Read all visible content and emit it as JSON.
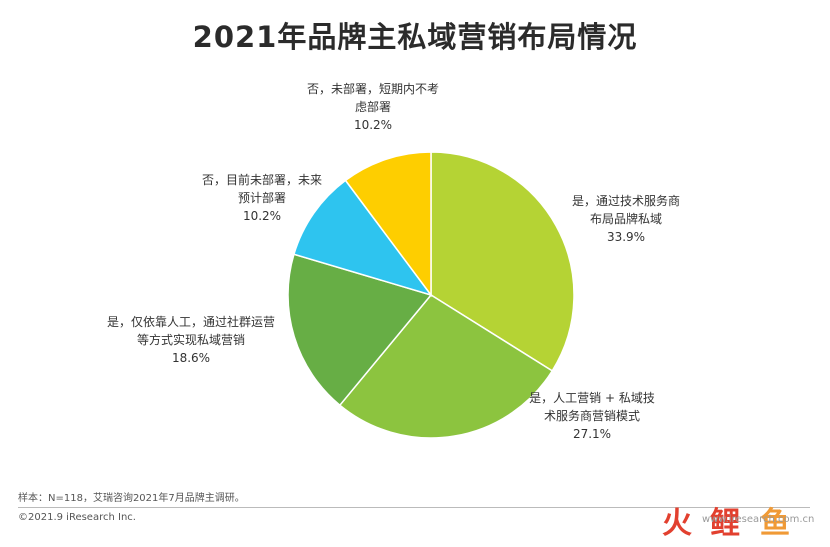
{
  "title": "2021年品牌主私域营销布局情况",
  "chart_data": {
    "type": "pie",
    "title": "2021年品牌主私域营销布局情况",
    "slices": [
      {
        "label_lines": [
          "是，通过技术服务商",
          "布局品牌私域"
        ],
        "value": 33.9,
        "value_label": "33.9%",
        "color": "#b5d334"
      },
      {
        "label_lines": [
          "是，人工营销 + 私域技",
          "术服务商营销模式"
        ],
        "value": 27.1,
        "value_label": "27.1%",
        "color": "#8cc43f"
      },
      {
        "label_lines": [
          "是，仅依靠人工，通过社群运营",
          "等方式实现私域营销"
        ],
        "value": 18.6,
        "value_label": "18.6%",
        "color": "#67ae45"
      },
      {
        "label_lines": [
          "否，目前未部署，未来",
          "预计部署"
        ],
        "value": 10.2,
        "value_label": "10.2%",
        "color": "#2ec4ef"
      },
      {
        "label_lines": [
          "否，未部署，短期内不考",
          "虑部署"
        ],
        "value": 10.2,
        "value_label": "10.2%",
        "color": "#fece00"
      }
    ]
  },
  "footer": {
    "source_note": "样本：N=118，艾瑞咨询2021年7月品牌主调研。",
    "copyright": "©2021.9 iResearch Inc."
  },
  "watermark": {
    "glyphs": [
      "火",
      "鲤",
      "鱼"
    ],
    "url": "www.iresearch.com.cn",
    "colors": [
      "#e2402f",
      "#e2402f",
      "#f09a36"
    ]
  }
}
